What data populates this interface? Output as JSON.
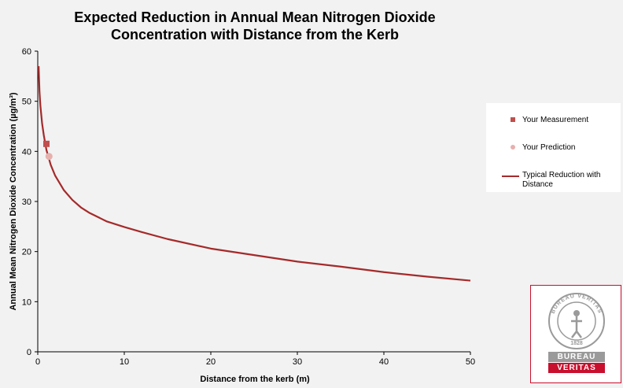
{
  "chart_data": {
    "type": "line",
    "title_lines": [
      "Expected Reduction in Annual Mean Nitrogen Dioxide",
      "Concentration with Distance from the Kerb"
    ],
    "xlabel": "Distance from the kerb (m)",
    "ylabel": "Annual Mean Nitrogen Dioxide Concentration (µg/m³)",
    "xlim": [
      0,
      50
    ],
    "ylim": [
      0,
      60
    ],
    "x_ticks": [
      "0",
      "10",
      "20",
      "30",
      "40",
      "50"
    ],
    "y_ticks": [
      "0",
      "10",
      "20",
      "30",
      "40",
      "50",
      "60"
    ],
    "grid": false,
    "legend_position": "right",
    "series": [
      {
        "name": "Typical Reduction with Distance",
        "kind": "line",
        "color": "#a52a2a",
        "x": [
          0.1,
          0.2,
          0.3,
          0.5,
          0.7,
          1,
          1.5,
          2,
          3,
          4,
          5,
          6,
          8,
          10,
          12,
          15,
          20,
          25,
          30,
          35,
          40,
          45,
          50
        ],
        "y": [
          57,
          52,
          49.2,
          45.6,
          43.2,
          40.3,
          37.3,
          35.2,
          32.3,
          30.3,
          28.8,
          27.7,
          26.0,
          24.9,
          23.9,
          22.5,
          20.6,
          19.3,
          18.0,
          17.0,
          15.9,
          15.0,
          14.2
        ]
      },
      {
        "name": "Your Measurement",
        "kind": "marker",
        "marker": "square",
        "color": "#c0504d",
        "x": [
          1
        ],
        "y": [
          41.5
        ]
      },
      {
        "name": "Your Prediction",
        "kind": "marker",
        "marker": "circle",
        "color": "#e6b0ad",
        "x": [
          1.3
        ],
        "y": [
          39
        ]
      }
    ]
  },
  "legend": {
    "items": [
      {
        "label": "Your Measurement",
        "symbol": "square",
        "color": "#c0504d"
      },
      {
        "label": "Your Prediction",
        "symbol": "circle",
        "color": "#e6b0ad"
      },
      {
        "label": "Typical Reduction with Distance",
        "symbol": "line",
        "color": "#a52a2a"
      }
    ]
  },
  "logo": {
    "seal_text": "BUREAU VERITAS",
    "seal_year": "1828",
    "word_top": "BUREAU",
    "word_bottom": "VERITAS",
    "grey": "#9a9a9a",
    "red": "#c8102e"
  }
}
